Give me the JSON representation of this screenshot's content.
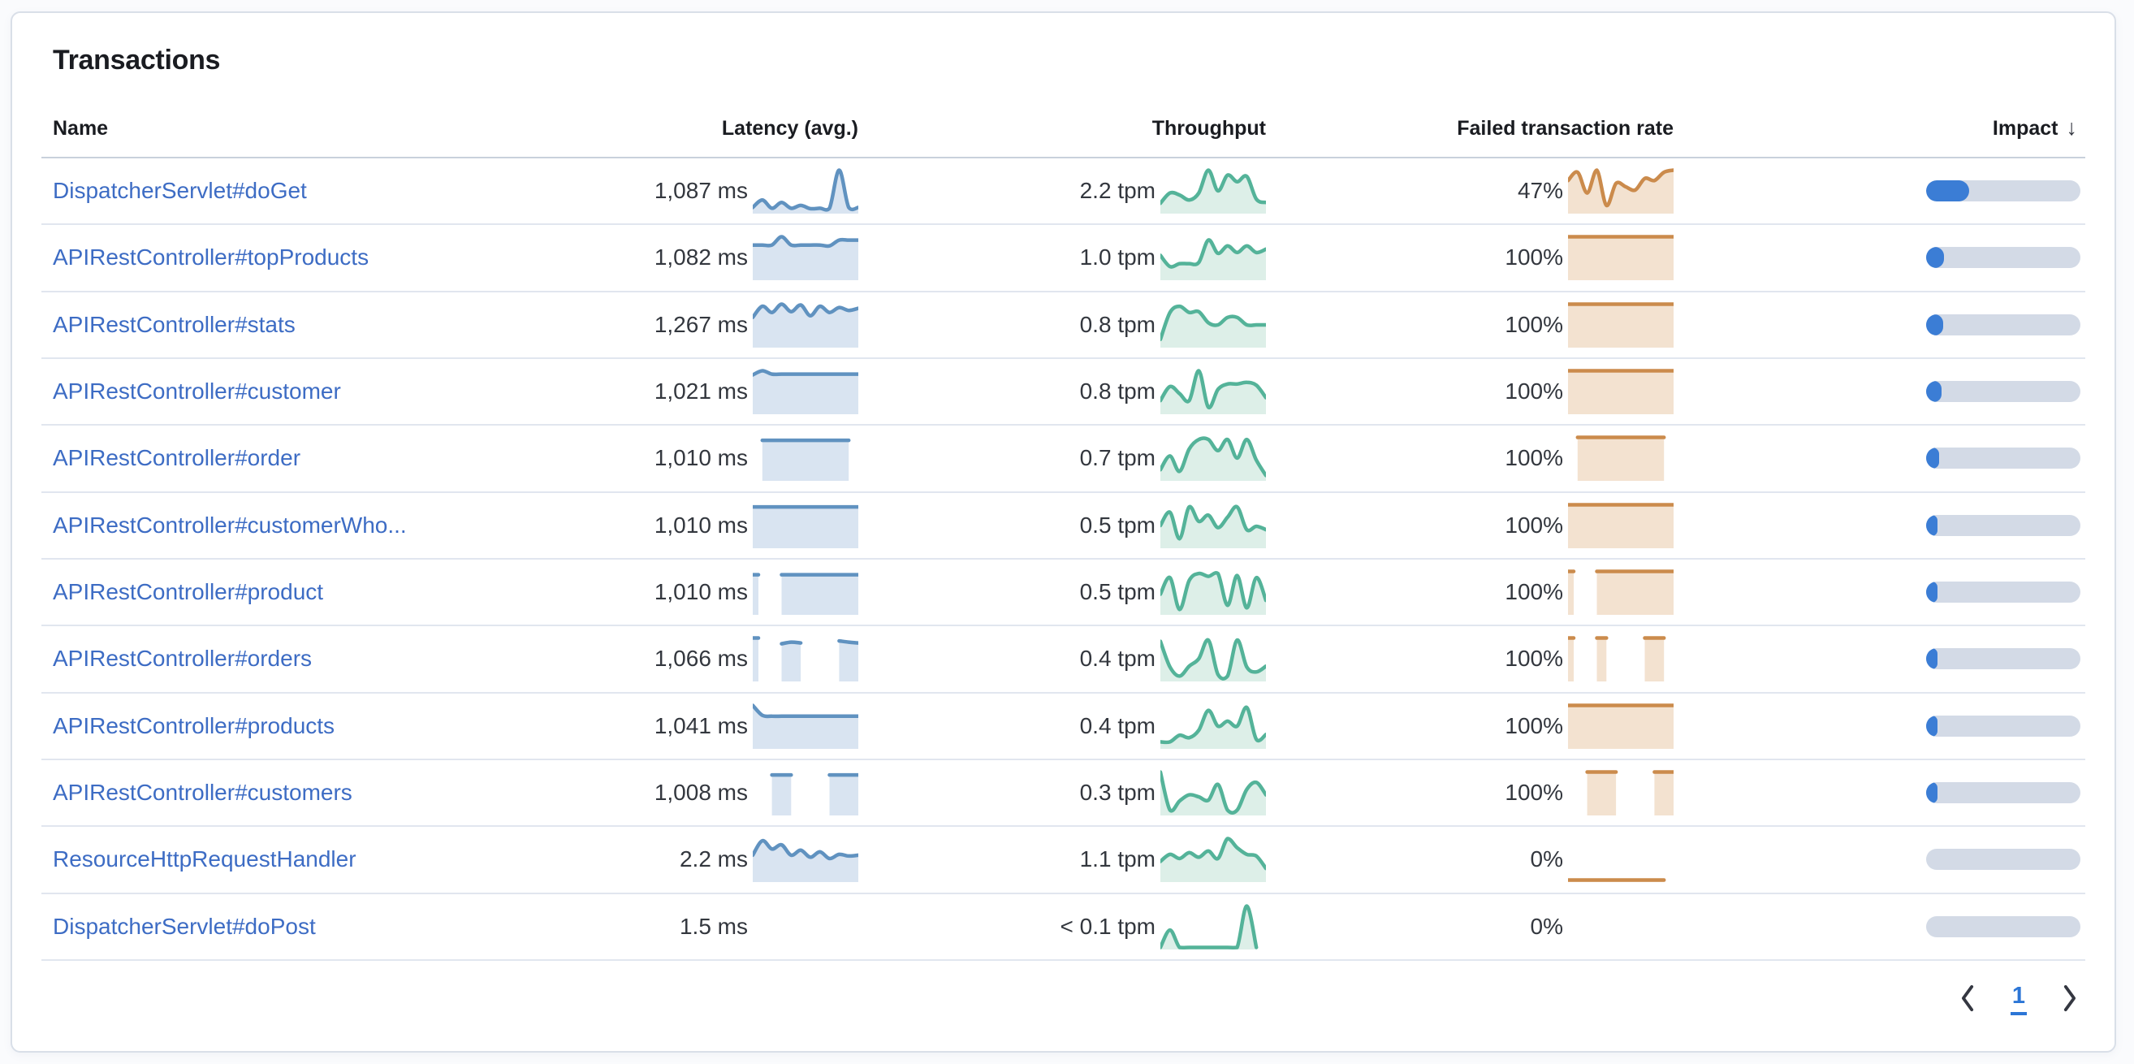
{
  "panel": {
    "title": "Transactions"
  },
  "table": {
    "headers": {
      "name": "Name",
      "latency": "Latency (avg.)",
      "throughput": "Throughput",
      "failed": "Failed transaction rate",
      "impact": "Impact",
      "sort_arrow": "↓",
      "sort_order": "desc"
    },
    "rows": [
      {
        "name": "DispatcherServlet#doGet",
        "latency": "1,087 ms",
        "latency_spark": [
          0.1,
          0.28,
          0.08,
          0.22,
          0.08,
          0.15,
          0.07,
          0.08,
          0.08,
          1.0,
          0.1,
          0.1
        ],
        "throughput": "2.2 tpm",
        "throughput_spark": [
          0.2,
          0.45,
          0.4,
          0.28,
          0.45,
          1.0,
          0.5,
          0.88,
          0.72,
          0.85,
          0.3,
          0.22
        ],
        "failed_rate": "47%",
        "failed_spark": [
          0.75,
          0.95,
          0.45,
          1.0,
          0.15,
          0.68,
          0.6,
          0.52,
          0.8,
          0.75,
          0.95,
          1.0
        ],
        "impact": 0.28
      },
      {
        "name": "APIRestController#topProducts",
        "latency": "1,082 ms",
        "latency_spark": [
          0.8,
          0.8,
          0.8,
          1.0,
          0.8,
          0.8,
          0.8,
          0.8,
          0.78,
          0.92,
          0.92,
          0.92
        ],
        "throughput": "1.0 tpm",
        "throughput_spark": [
          0.55,
          0.28,
          0.35,
          0.35,
          0.38,
          0.92,
          0.6,
          0.78,
          0.62,
          0.78,
          0.62,
          0.7
        ],
        "failed_rate": "100%",
        "failed_spark": [
          1,
          1,
          1,
          1,
          1,
          1,
          1,
          1,
          1,
          1,
          1,
          1
        ],
        "impact": 0.115
      },
      {
        "name": "APIRestController#stats",
        "latency": "1,267 ms",
        "latency_spark": [
          0.68,
          0.95,
          0.8,
          1.0,
          0.82,
          0.98,
          0.72,
          0.95,
          0.8,
          0.92,
          0.85,
          0.9
        ],
        "throughput": "0.8 tpm",
        "throughput_spark": [
          0.15,
          0.8,
          0.95,
          0.8,
          0.82,
          0.55,
          0.5,
          0.68,
          0.68,
          0.5,
          0.5,
          0.5
        ],
        "failed_rate": "100%",
        "failed_spark": [
          1,
          1,
          1,
          1,
          1,
          1,
          1,
          1,
          1,
          1,
          1,
          1
        ],
        "impact": 0.11
      },
      {
        "name": "APIRestController#customer",
        "latency": "1,021 ms",
        "latency_spark": [
          0.9,
          1.0,
          0.92,
          0.92,
          0.92,
          0.92,
          0.92,
          0.92,
          0.92,
          0.92,
          0.92,
          0.92
        ],
        "throughput": "0.8 tpm",
        "throughput_spark": [
          0.28,
          0.62,
          0.45,
          0.28,
          1.0,
          0.12,
          0.55,
          0.68,
          0.68,
          0.72,
          0.65,
          0.35
        ],
        "failed_rate": "100%",
        "failed_spark": [
          1,
          1,
          1,
          1,
          1,
          1,
          1,
          1,
          1,
          1,
          1,
          1
        ],
        "impact": 0.1
      },
      {
        "name": "APIRestController#order",
        "latency": "1,010 ms",
        "latency_spark": [
          null,
          0.93,
          0.93,
          0.93,
          0.93,
          0.93,
          0.93,
          0.93,
          0.93,
          0.93,
          0.93,
          null
        ],
        "throughput": "0.7 tpm",
        "throughput_spark": [
          0.22,
          0.55,
          0.18,
          0.72,
          0.95,
          0.95,
          0.68,
          0.95,
          0.5,
          0.95,
          0.45,
          0.08
        ],
        "failed_rate": "100%",
        "failed_spark": [
          null,
          1,
          1,
          1,
          1,
          1,
          1,
          1,
          1,
          1,
          1,
          null
        ],
        "impact": 0.085
      },
      {
        "name": "APIRestController#customerWho...",
        "latency": "1,010 ms",
        "latency_spark": [
          0.95,
          0.95,
          0.95,
          0.95,
          0.95,
          0.95,
          0.95,
          0.95,
          0.95,
          0.95,
          0.95,
          0.95
        ],
        "throughput": "0.5 tpm",
        "throughput_spark": [
          0.5,
          0.82,
          0.18,
          0.95,
          0.6,
          0.75,
          0.45,
          0.7,
          0.95,
          0.4,
          0.48,
          0.4
        ],
        "failed_rate": "100%",
        "failed_spark": [
          1,
          1,
          1,
          1,
          1,
          1,
          1,
          1,
          1,
          1,
          1,
          1
        ],
        "impact": 0.07
      },
      {
        "name": "APIRestController#product",
        "latency": "1,010 ms",
        "latency_spark": [
          0.92,
          null,
          null,
          0.92,
          0.92,
          0.92,
          0.92,
          0.92,
          0.92,
          0.92,
          0.92,
          0.92
        ],
        "throughput": "0.5 tpm",
        "throughput_spark": [
          0.45,
          0.85,
          0.08,
          0.78,
          0.95,
          0.88,
          0.95,
          0.18,
          0.9,
          0.12,
          0.85,
          0.3
        ],
        "failed_rate": "100%",
        "failed_spark": [
          1,
          null,
          null,
          1,
          1,
          1,
          1,
          1,
          1,
          1,
          1,
          1
        ],
        "impact": 0.065
      },
      {
        "name": "APIRestController#orders",
        "latency": "1,066 ms",
        "latency_spark": [
          1.0,
          null,
          null,
          0.86,
          0.9,
          0.88,
          null,
          null,
          null,
          0.93,
          0.9,
          0.88
        ],
        "throughput": "0.4 tpm",
        "throughput_spark": [
          0.92,
          0.3,
          0.08,
          0.32,
          0.5,
          0.95,
          0.12,
          0.08,
          0.95,
          0.3,
          0.18,
          0.32
        ],
        "failed_rate": "100%",
        "failed_spark": [
          1,
          null,
          null,
          1,
          1,
          null,
          null,
          null,
          1,
          1,
          1,
          null
        ],
        "impact": 0.06
      },
      {
        "name": "APIRestController#products",
        "latency": "1,041 ms",
        "latency_spark": [
          1.0,
          0.76,
          0.74,
          0.74,
          0.74,
          0.74,
          0.74,
          0.74,
          0.74,
          0.74,
          0.74,
          0.74
        ],
        "throughput": "0.4 tpm",
        "throughput_spark": [
          0.12,
          0.12,
          0.28,
          0.22,
          0.4,
          0.88,
          0.5,
          0.62,
          0.5,
          0.95,
          0.18,
          0.3
        ],
        "failed_rate": "100%",
        "failed_spark": [
          1,
          1,
          1,
          1,
          1,
          1,
          1,
          1,
          1,
          1,
          1,
          1
        ],
        "impact": 0.05
      },
      {
        "name": "APIRestController#customers",
        "latency": "1,008 ms",
        "latency_spark": [
          null,
          null,
          0.93,
          0.93,
          0.93,
          null,
          null,
          null,
          0.93,
          0.93,
          0.93,
          0.93
        ],
        "throughput": "0.3 tpm",
        "throughput_spark": [
          1.0,
          0.08,
          0.3,
          0.45,
          0.4,
          0.32,
          0.7,
          0.08,
          0.08,
          0.58,
          0.75,
          0.45
        ],
        "failed_rate": "100%",
        "failed_spark": [
          null,
          null,
          1,
          1,
          1,
          1,
          null,
          null,
          null,
          1,
          1,
          1
        ],
        "impact": 0.045
      },
      {
        "name": "ResourceHttpRequestHandler",
        "latency": "2.2 ms",
        "latency_spark": [
          0.6,
          0.95,
          0.75,
          0.85,
          0.6,
          0.72,
          0.55,
          0.68,
          0.52,
          0.62,
          0.58,
          0.6
        ],
        "throughput": "1.1 tpm",
        "throughput_spark": [
          0.45,
          0.62,
          0.52,
          0.66,
          0.55,
          0.7,
          0.52,
          1.0,
          0.78,
          0.62,
          0.58,
          0.28
        ],
        "failed_rate": "0%",
        "failed_spark": [
          0,
          0,
          0,
          0,
          0,
          0,
          0,
          0,
          0,
          0,
          0,
          null
        ],
        "impact": 0
      },
      {
        "name": "DispatcherServlet#doPost",
        "latency": "1.5 ms",
        "latency_spark": null,
        "throughput": "< 0.1 tpm",
        "throughput_spark": [
          0,
          0.42,
          0,
          0,
          0,
          0,
          0,
          0,
          0,
          1.0,
          0,
          null
        ],
        "failed_rate": "0%",
        "failed_spark": null,
        "impact": 0
      }
    ]
  },
  "pagination": {
    "page": "1"
  },
  "colors": {
    "link": "#3D6CC4",
    "latency_line": "#6092C0",
    "latency_fill": "#D9E4F1",
    "throughput_line": "#54B399",
    "throughput_fill": "#DDEFE8",
    "failed_line": "#CB8B4C",
    "failed_fill": "#F3E2D0",
    "impact_fill": "#3B7DD5",
    "impact_track": "#D3DAE6"
  }
}
